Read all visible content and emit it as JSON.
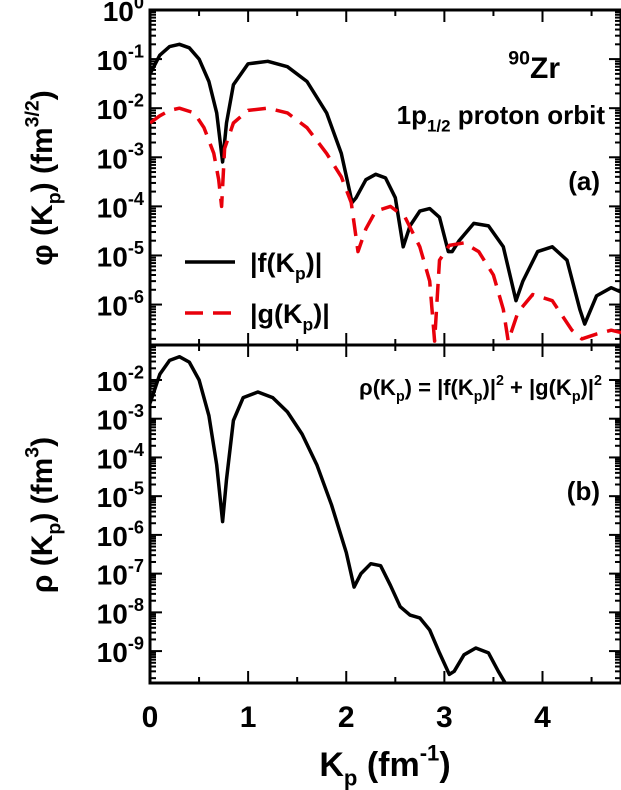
{
  "chart_data": [
    {
      "type": "line",
      "panel": "(a)",
      "ylabel": "φ (K_p) (fm^3/2)",
      "y_scale": "log",
      "ylim": [
        1.5e-07,
        1
      ],
      "xlim": [
        0,
        4.8
      ],
      "y_ticks": [
        1e-06,
        1e-05,
        0.0001,
        0.001,
        0.01,
        0.1,
        1
      ],
      "y_tick_labels": [
        {
          "base": "10",
          "exp": "-6"
        },
        {
          "base": "10",
          "exp": "-5"
        },
        {
          "base": "10",
          "exp": "-4"
        },
        {
          "base": "10",
          "exp": "-3"
        },
        {
          "base": "10",
          "exp": "-2"
        },
        {
          "base": "10",
          "exp": "-1"
        },
        {
          "base": "10",
          "exp": "0"
        }
      ],
      "annotations": {
        "nucleus_mass": "90",
        "nucleus": "Zr",
        "orbit_pre": "1p",
        "orbit_sub": "1/2",
        "orbit_post": " proton orbit",
        "panel_label": "(a)"
      },
      "series": [
        {
          "name": "|f(K_p)|",
          "legend_parts": [
            "|f(K",
            "p",
            ")|"
          ],
          "color": "#000000",
          "dash": "solid",
          "x": [
            0.0,
            0.1,
            0.2,
            0.3,
            0.4,
            0.5,
            0.6,
            0.68,
            0.74,
            0.78,
            0.85,
            1.0,
            1.2,
            1.4,
            1.6,
            1.8,
            1.95,
            2.06,
            2.1,
            2.2,
            2.3,
            2.4,
            2.5,
            2.58,
            2.65,
            2.75,
            2.85,
            2.95,
            3.04,
            3.08,
            3.15,
            3.3,
            3.45,
            3.6,
            3.73,
            3.8,
            3.95,
            4.1,
            4.25,
            4.38,
            4.43,
            4.55,
            4.7,
            4.8
          ],
          "y": [
            0.05,
            0.12,
            0.18,
            0.2,
            0.17,
            0.1,
            0.035,
            0.008,
            0.0008,
            0.005,
            0.03,
            0.08,
            0.09,
            0.07,
            0.035,
            0.008,
            0.0012,
            0.00012,
            0.00015,
            0.00035,
            0.00045,
            0.00038,
            0.00015,
            1.5e-05,
            4e-05,
            8e-05,
            9e-05,
            6e-05,
            1.2e-05,
            1.2e-05,
            2e-05,
            4.5e-05,
            4e-05,
            1.5e-05,
            1.2e-06,
            3e-06,
            1.2e-05,
            1.5e-05,
            8e-06,
            8e-07,
            4e-07,
            1.5e-06,
            2.2e-06,
            1.8e-06
          ]
        },
        {
          "name": "|g(K_p)|",
          "legend_parts": [
            "|g(K",
            "p",
            ")|"
          ],
          "color": "#e8000b",
          "dash": "dashed",
          "x": [
            0.0,
            0.1,
            0.2,
            0.3,
            0.45,
            0.55,
            0.65,
            0.7,
            0.73,
            0.76,
            0.85,
            1.0,
            1.2,
            1.4,
            1.6,
            1.8,
            1.95,
            2.05,
            2.12,
            2.2,
            2.3,
            2.45,
            2.6,
            2.75,
            2.85,
            2.9,
            2.95,
            3.05,
            3.2,
            3.35,
            3.5,
            3.6,
            3.65,
            3.75,
            3.9,
            4.1,
            4.3,
            4.4,
            4.55,
            4.7,
            4.8
          ],
          "y": [
            0.005,
            0.007,
            0.009,
            0.01,
            0.008,
            0.004,
            0.0012,
            0.00035,
            0.0001,
            0.0015,
            0.005,
            0.009,
            0.01,
            0.008,
            0.004,
            0.0012,
            0.0004,
            0.00012,
            1.2e-05,
            3.5e-05,
            8e-05,
            0.0001,
            6e-05,
            1.5e-05,
            3e-06,
            1.8e-07,
            8e-06,
            1.6e-05,
            1.8e-05,
            1.2e-05,
            4e-06,
            8e-07,
            1.8e-07,
            7e-07,
            1.6e-06,
            1.2e-06,
            3e-07,
            2e-07,
            2.5e-07,
            3e-07,
            2.7e-07
          ]
        }
      ]
    },
    {
      "type": "line",
      "panel": "(b)",
      "ylabel": "ρ (K_p) (fm^3)",
      "xlabel": "K_p (fm^-1)",
      "y_scale": "log",
      "ylim": [
        1.5e-10,
        0.08
      ],
      "xlim": [
        0,
        4.8
      ],
      "x_ticks": [
        0,
        1,
        2,
        3,
        4
      ],
      "x_tick_labels": [
        "0",
        "1",
        "2",
        "3",
        "4"
      ],
      "y_ticks": [
        1e-09,
        1e-08,
        1e-07,
        1e-06,
        1e-05,
        0.0001,
        0.001,
        0.01
      ],
      "y_tick_labels": [
        {
          "base": "10",
          "exp": "-9"
        },
        {
          "base": "10",
          "exp": "-8"
        },
        {
          "base": "10",
          "exp": "-7"
        },
        {
          "base": "10",
          "exp": "-6"
        },
        {
          "base": "10",
          "exp": "-5"
        },
        {
          "base": "10",
          "exp": "-4"
        },
        {
          "base": "10",
          "exp": "-3"
        },
        {
          "base": "10",
          "exp": "-2"
        }
      ],
      "annotations": {
        "formula_parts": {
          "a": "ρ(K",
          "a_sub": "p",
          "b": ") = |f(K",
          "b_sub": "p",
          "c": ")|",
          "c_sup": "2",
          "d": " + |g(K",
          "d_sub": "p",
          "e": ")|",
          "e_sup": "2"
        },
        "panel_label": "(b)"
      },
      "series": [
        {
          "name": "ρ(K_p)",
          "color": "#000000",
          "dash": "solid",
          "x": [
            0.0,
            0.1,
            0.2,
            0.3,
            0.4,
            0.5,
            0.6,
            0.68,
            0.74,
            0.78,
            0.85,
            0.95,
            1.1,
            1.25,
            1.4,
            1.55,
            1.7,
            1.85,
            2.0,
            2.08,
            2.15,
            2.25,
            2.35,
            2.45,
            2.55,
            2.65,
            2.75,
            2.85,
            2.95,
            3.05,
            3.1,
            3.2,
            3.32,
            3.45,
            3.55,
            3.62
          ],
          "y": [
            0.0025,
            0.014,
            0.032,
            0.04,
            0.029,
            0.01,
            0.0012,
            6.4e-05,
            2.2e-06,
            2.7e-05,
            0.0009,
            0.0035,
            0.0049,
            0.0035,
            0.0015,
            0.0004,
            6.5e-05,
            6e-06,
            3.5e-07,
            4.5e-08,
            1e-07,
            1.8e-07,
            1.6e-07,
            5e-08,
            1.4e-08,
            8.5e-09,
            7.2e-09,
            3.5e-09,
            9e-10,
            2.5e-10,
            3e-10,
            8e-10,
            1.2e-09,
            9e-10,
            3e-10,
            1.5e-10
          ]
        }
      ]
    }
  ]
}
